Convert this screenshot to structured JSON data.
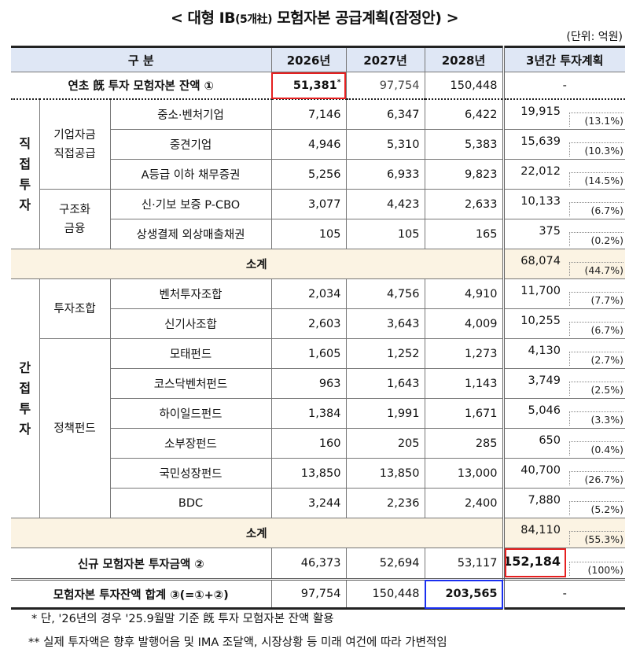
{
  "title": {
    "prefix": "< 대형 IB",
    "small": "(5개社)",
    "suffix": " 모험자본 공급계획(잠정안) >"
  },
  "unit": "(단위: 억원)",
  "header": {
    "category": "구 분",
    "y2026": "2026년",
    "y2027": "2027년",
    "y2028": "2028년",
    "total": "3년간 투자계획"
  },
  "opening": {
    "label": "연초 旣 투자 모험자본 잔액 ①",
    "v2026": "51,381",
    "mark": "*",
    "v2027": "97,754",
    "v2028": "150,448",
    "total": "-"
  },
  "direct": {
    "label": "직접투자",
    "groups": [
      {
        "label": "기업자금\n직접공급",
        "rows": [
          {
            "label": "중소·벤처기업",
            "v": [
              "7,146",
              "6,347",
              "6,422"
            ],
            "total": "19,915",
            "pct": "(13.1%)"
          },
          {
            "label": "중견기업",
            "v": [
              "4,946",
              "5,310",
              "5,383"
            ],
            "total": "15,639",
            "pct": "(10.3%)"
          },
          {
            "label": "A등급 이하 채무증권",
            "v": [
              "5,256",
              "6,933",
              "9,823"
            ],
            "total": "22,012",
            "pct": "(14.5%)"
          }
        ]
      },
      {
        "label": "구조화\n금융",
        "rows": [
          {
            "label": "신·기보 보증 P-CBO",
            "v": [
              "3,077",
              "4,423",
              "2,633"
            ],
            "total": "10,133",
            "pct": "(6.7%)"
          },
          {
            "label": "상생결제 외상매출채권",
            "v": [
              "105",
              "105",
              "165"
            ],
            "total": "375",
            "pct": "(0.2%)"
          }
        ]
      }
    ],
    "subtotal": {
      "label": "소계",
      "total": "68,074",
      "pct": "(44.7%)"
    }
  },
  "indirect": {
    "label": "간접투자",
    "groups": [
      {
        "label": "투자조합",
        "rows": [
          {
            "label": "벤처투자조합",
            "v": [
              "2,034",
              "4,756",
              "4,910"
            ],
            "total": "11,700",
            "pct": "(7.7%)"
          },
          {
            "label": "신기사조합",
            "v": [
              "2,603",
              "3,643",
              "4,009"
            ],
            "total": "10,255",
            "pct": "(6.7%)"
          }
        ]
      },
      {
        "label": "정책펀드",
        "rows": [
          {
            "label": "모태펀드",
            "v": [
              "1,605",
              "1,252",
              "1,273"
            ],
            "total": "4,130",
            "pct": "(2.7%)"
          },
          {
            "label": "코스닥벤처펀드",
            "v": [
              "963",
              "1,643",
              "1,143"
            ],
            "total": "3,749",
            "pct": "(2.5%)"
          },
          {
            "label": "하이일드펀드",
            "v": [
              "1,384",
              "1,991",
              "1,671"
            ],
            "total": "5,046",
            "pct": "(3.3%)"
          },
          {
            "label": "소부장펀드",
            "v": [
              "160",
              "205",
              "285"
            ],
            "total": "650",
            "pct": "(0.4%)"
          },
          {
            "label": "국민성장펀드",
            "v": [
              "13,850",
              "13,850",
              "13,000"
            ],
            "total": "40,700",
            "pct": "(26.7%)"
          },
          {
            "label": "BDC",
            "v": [
              "3,244",
              "2,236",
              "2,400"
            ],
            "total": "7,880",
            "pct": "(5.2%)"
          }
        ]
      }
    ],
    "subtotal": {
      "label": "소계",
      "total": "84,110",
      "pct": "(55.3%)"
    }
  },
  "new_investment": {
    "label": "신규 모험자본 투자금액 ②",
    "v": [
      "46,373",
      "52,694",
      "53,117"
    ],
    "total": "152,184",
    "pct": "(100%)"
  },
  "balance_total": {
    "label": "모험자본 투자잔액 합계 ③(=①+②)",
    "v": [
      "97,754",
      "150,448",
      "203,565"
    ],
    "total": "-"
  },
  "notes": [
    "* 단, '26년의 경우 '25.9월말 기준 旣 투자 모험자본 잔액 활용",
    "** 실제 투자액은 향후 발행어음 및 IMA 조달액, 시장상황 등 미래 여건에 따라 가변적임"
  ]
}
